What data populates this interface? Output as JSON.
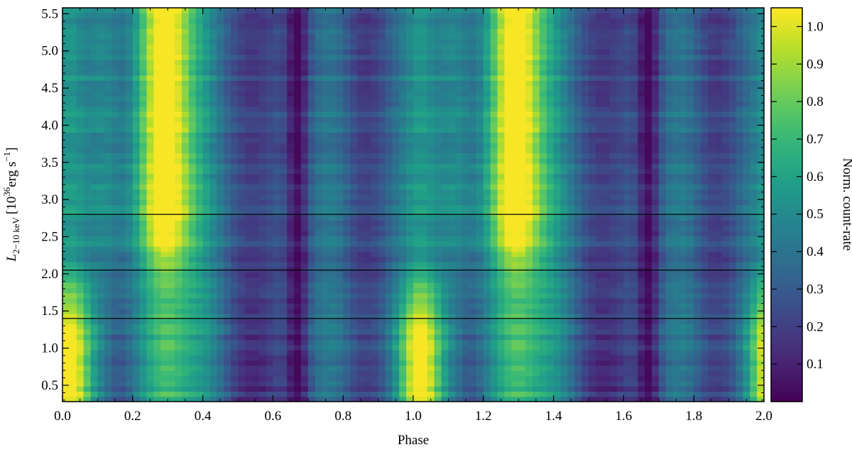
{
  "chart_data": {
    "type": "heatmap",
    "title": "",
    "xlabel": "Phase",
    "ylabel": {
      "main": "L",
      "subscript": "2−10 keV",
      "units_prefix": "[10",
      "units_exp": "36",
      "units_mid": "erg s",
      "units_exp2": "−1",
      "units_suffix": "]"
    },
    "xlim": [
      0.0,
      2.0
    ],
    "ylim": [
      0.28,
      5.58
    ],
    "xticks": [
      0.0,
      0.2,
      0.4,
      0.6,
      0.8,
      1.0,
      1.2,
      1.4,
      1.6,
      1.8,
      2.0
    ],
    "xtick_labels": [
      "0.0",
      "0.2",
      "0.4",
      "0.6",
      "0.8",
      "1.0",
      "1.2",
      "1.4",
      "1.6",
      "1.8",
      "2.0"
    ],
    "yticks": [
      0.5,
      1.0,
      1.5,
      2.0,
      2.5,
      3.0,
      3.5,
      4.0,
      4.5,
      5.0,
      5.5
    ],
    "ytick_labels": [
      "0.5",
      "1.0",
      "1.5",
      "2.0",
      "2.5",
      "3.0",
      "3.5",
      "4.0",
      "4.5",
      "5.0",
      "5.5"
    ],
    "horizontal_lines": [
      1.4,
      2.05,
      2.8
    ],
    "colorbar": {
      "label": "Norm. count-rate",
      "range": [
        0.0,
        1.05
      ],
      "ticks": [
        0.1,
        0.2,
        0.3,
        0.4,
        0.5,
        0.6,
        0.7,
        0.8,
        0.9,
        1.0
      ],
      "tick_labels": [
        "0.1",
        "0.2",
        "0.3",
        "0.4",
        "0.5",
        "0.6",
        "0.7",
        "0.8",
        "0.9",
        "1.0"
      ],
      "colormap": "viridis"
    },
    "profile_features": {
      "peaks_low_luminosity_phase": [
        0.02,
        1.02
      ],
      "peaks_high_luminosity_phase": [
        0.29,
        1.29
      ],
      "minima_phase": [
        0.67,
        1.67
      ]
    }
  }
}
